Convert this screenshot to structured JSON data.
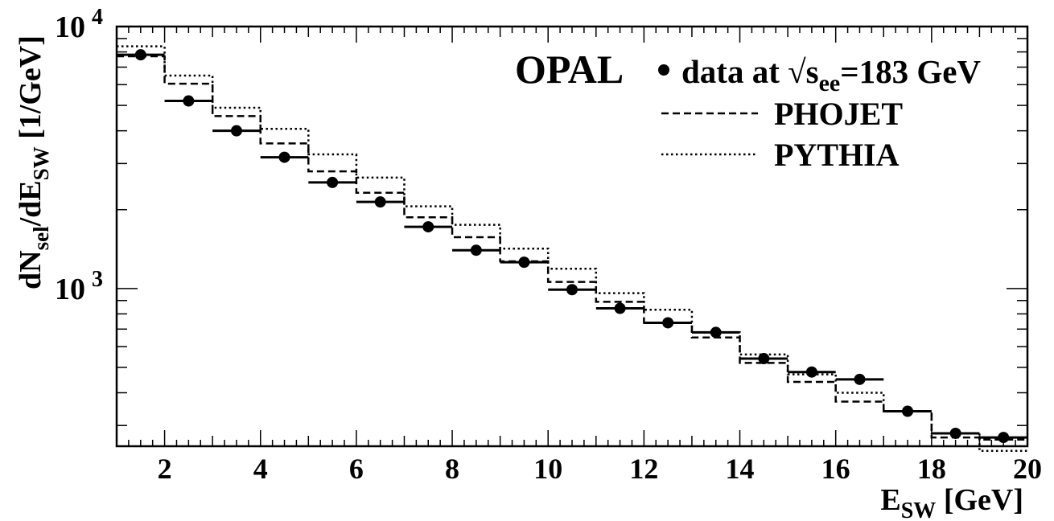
{
  "chart_data": {
    "type": "line",
    "experiment_label": "OPAL",
    "xlabel": {
      "main": "E",
      "sub": "SW",
      "unit": " [GeV]"
    },
    "ylabel": {
      "p1": "dN",
      "s1": "sel",
      "p2": "/dE",
      "s2": "SW",
      "p3": " [1/GeV]"
    },
    "xlim": [
      1,
      20
    ],
    "ylim": [
      250,
      10000
    ],
    "yscale": "log",
    "xticks": [
      2,
      4,
      6,
      8,
      10,
      12,
      14,
      16,
      18,
      20
    ],
    "yticks": [
      {
        "value": 1000,
        "base": "10",
        "exp": "3"
      },
      {
        "value": 10000,
        "base": "10",
        "exp": "4"
      }
    ],
    "bin_edges": [
      1,
      2,
      3,
      4,
      5,
      6,
      7,
      8,
      9,
      10,
      11,
      12,
      13,
      14,
      15,
      16,
      17,
      18,
      19,
      20
    ],
    "series": [
      {
        "name": "data at √s=183 GeV",
        "legend": {
          "prefix": "data at √s",
          "sub": "ee",
          "suffix": "=183 GeV"
        },
        "style": "points",
        "x": [
          1.5,
          2.5,
          3.5,
          4.5,
          5.5,
          6.5,
          7.5,
          8.5,
          9.5,
          10.5,
          11.5,
          12.5,
          13.5,
          14.5,
          15.5,
          16.5,
          17.5,
          18.5,
          19.5
        ],
        "values": [
          7800,
          5200,
          4000,
          3170,
          2540,
          2140,
          1720,
          1400,
          1260,
          990,
          840,
          740,
          680,
          540,
          480,
          450,
          340,
          280,
          270
        ]
      },
      {
        "name": "PHOJET",
        "style": "dashed",
        "values": [
          7700,
          6050,
          4550,
          3580,
          2800,
          2320,
          1870,
          1570,
          1270,
          1060,
          890,
          740,
          650,
          520,
          440,
          370,
          340,
          270,
          265
        ]
      },
      {
        "name": "PYTHIA",
        "style": "dotted",
        "values": [
          8400,
          6500,
          4900,
          4070,
          3250,
          2650,
          2060,
          1750,
          1420,
          1190,
          960,
          830,
          680,
          560,
          470,
          400,
          340,
          280,
          240
        ]
      }
    ]
  }
}
